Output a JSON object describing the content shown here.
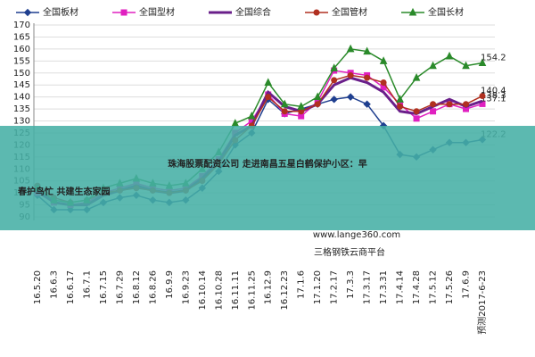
{
  "chart_data": {
    "type": "line",
    "categories": [
      "16.5.20",
      "16.6.3",
      "16.6.17",
      "16.7.1",
      "16.7.15",
      "16.7.29",
      "16.8.12",
      "16.8.26",
      "16.9.9",
      "16.9.23",
      "16.10.14",
      "16.10.28",
      "16.11.11",
      "16.11.25",
      "16.12.9",
      "16.12.23",
      "17.1.6",
      "17.1.20",
      "17.2.17",
      "17.3.3",
      "17.3.17",
      "17.3.31",
      "17.4.14",
      "17.4.28",
      "17.5.12",
      "17.5.26",
      "17.6.9",
      "预测2017-6-23"
    ],
    "series": [
      {
        "name": "全国板材",
        "color": "#1f3f8f",
        "marker": "diamond",
        "values": [
          99,
          93,
          93,
          93,
          96,
          98,
          99,
          97,
          96,
          97,
          102,
          109,
          120,
          125,
          139,
          133,
          135,
          137,
          139,
          140,
          137,
          128,
          116,
          115,
          118,
          121,
          121,
          122.2
        ]
      },
      {
        "name": "全国型材",
        "color": "#e020c0",
        "marker": "square",
        "values": [
          100,
          96,
          95,
          96,
          100,
          102,
          104,
          102,
          101,
          102,
          107,
          114,
          125,
          130,
          141,
          133,
          132,
          138,
          151,
          150,
          149,
          144,
          137,
          131,
          134,
          137,
          135,
          137.1
        ]
      },
      {
        "name": "全国综合",
        "color": "#6a1f8a",
        "marker": "none",
        "values": [
          101,
          96,
          95,
          95,
          99,
          101,
          103,
          101,
          100,
          101,
          106,
          113,
          124,
          128,
          142,
          136,
          134,
          137,
          145,
          148,
          146,
          142,
          134,
          133,
          136,
          139,
          136,
          138.3
        ]
      },
      {
        "name": "全国管材",
        "color": "#b03020",
        "marker": "circle",
        "values": [
          103,
          98,
          96,
          97,
          100,
          101,
          102,
          101,
          100,
          101,
          105,
          112,
          122,
          128,
          140,
          134,
          134,
          137,
          147,
          149,
          148,
          146,
          136,
          134,
          137,
          137,
          137,
          140.4
        ]
      },
      {
        "name": "全国长材",
        "color": "#2a8a2a",
        "marker": "triangle",
        "values": [
          102,
          97,
          96,
          97,
          102,
          104,
          106,
          104,
          103,
          104,
          110,
          117,
          129,
          132,
          146,
          137,
          136,
          140,
          152,
          160,
          159,
          155,
          139,
          148,
          153,
          157,
          153,
          154.2
        ]
      }
    ],
    "ylim": [
      90,
      170
    ],
    "yticks": [
      90,
      95,
      100,
      105,
      110,
      115,
      120,
      125,
      130,
      135,
      140,
      145,
      150,
      155,
      160,
      165,
      170
    ],
    "grid": true,
    "annotations": [
      "www.lange360.com",
      "三格钢铁云商平台"
    ]
  },
  "overlay": {
    "lines": [
      "珠海股票配资公司 走进南昌五星白鹤保护小区：早",
      "春护鸟忙 共建生态家园"
    ]
  }
}
